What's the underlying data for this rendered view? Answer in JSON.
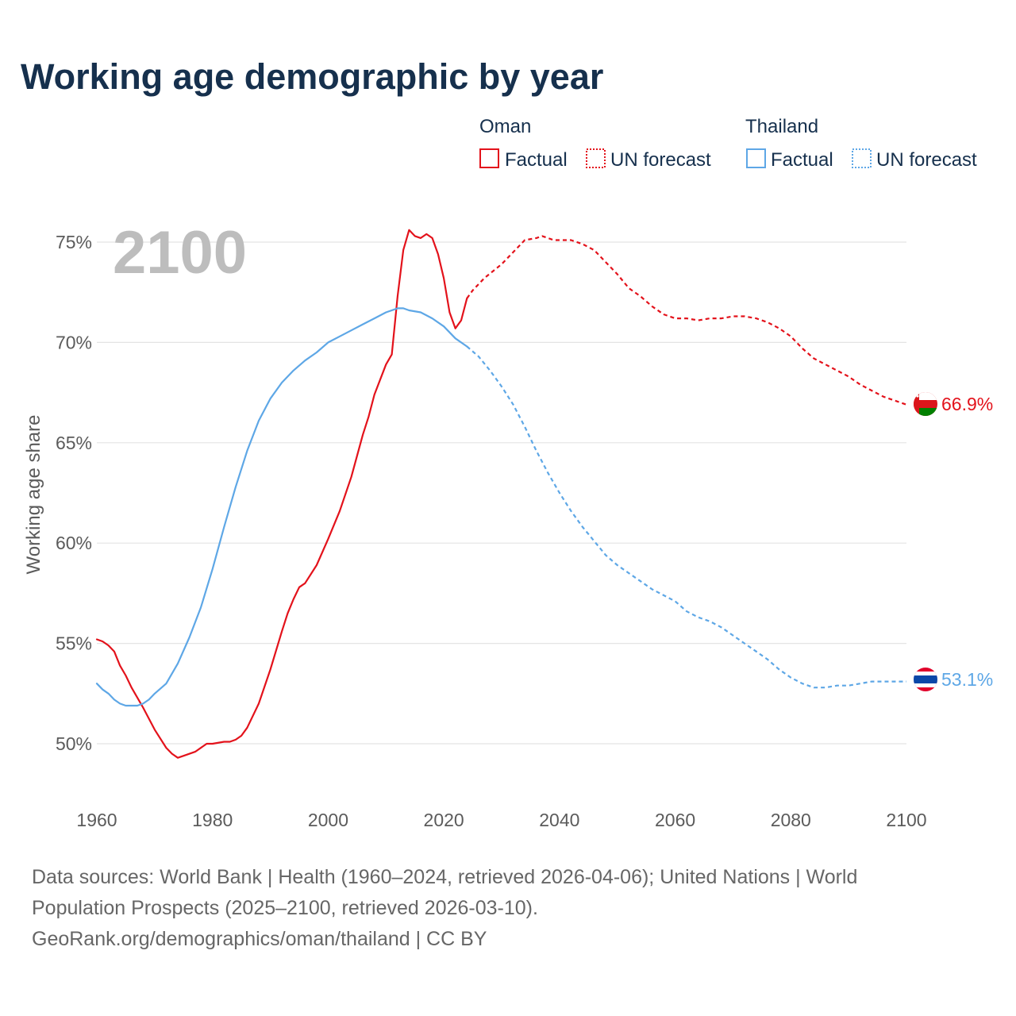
{
  "title": "Working age demographic by year",
  "year_watermark": "2100",
  "legend": {
    "groups": [
      {
        "name": "Oman",
        "color": "#e3121b",
        "factual_label": "Factual",
        "forecast_label": "UN forecast"
      },
      {
        "name": "Thailand",
        "color": "#5ea7e6",
        "factual_label": "Factual",
        "forecast_label": "UN forecast"
      }
    ]
  },
  "end_labels": {
    "oman": "66.9%",
    "thailand": "53.1%"
  },
  "icons": {
    "oman_flag": "oman-flag-icon",
    "thailand_flag": "thailand-flag-icon"
  },
  "footer": {
    "line1": "Data sources: World Bank | Health (1960–2024, retrieved 2026-04-06); United Nations | World",
    "line2": "Population Prospects (2025–2100, retrieved 2026-03-10).",
    "line3": "GeoRank.org/demographics/oman/thailand | CC BY"
  },
  "chart_data": {
    "type": "line",
    "title": "Working age demographic by year",
    "xlabel": "",
    "ylabel": "Working age share",
    "xlim": [
      1960,
      2100
    ],
    "ylim": [
      48,
      77
    ],
    "x_ticks": [
      1960,
      1980,
      2000,
      2020,
      2040,
      2060,
      2080,
      2100
    ],
    "x_tick_labels": [
      "1960",
      "1980",
      "2000",
      "2020",
      "2040",
      "2060",
      "2080",
      "2100"
    ],
    "y_ticks": [
      50,
      55,
      60,
      65,
      70,
      75
    ],
    "y_tick_labels": [
      "50%",
      "55%",
      "60%",
      "65%",
      "70%",
      "75%"
    ],
    "grid": true,
    "legend_position": "top-right",
    "forecast_start": 2024,
    "series": [
      {
        "name": "Oman",
        "color": "#e3121b",
        "x": [
          1960,
          1961,
          1962,
          1963,
          1964,
          1965,
          1966,
          1968,
          1970,
          1972,
          1973,
          1974,
          1975,
          1977,
          1979,
          1980,
          1982,
          1983,
          1984,
          1985,
          1986,
          1988,
          1990,
          1992,
          1993,
          1994,
          1995,
          1996,
          1998,
          2000,
          2002,
          2004,
          2006,
          2007,
          2008,
          2010,
          2011,
          2012,
          2013,
          2014,
          2015,
          2016,
          2017,
          2018,
          2019,
          2020,
          2021,
          2022,
          2023,
          2024,
          2025,
          2027,
          2030,
          2032,
          2034,
          2036,
          2037,
          2038,
          2039,
          2040,
          2042,
          2044,
          2046,
          2048,
          2050,
          2052,
          2054,
          2056,
          2058,
          2060,
          2062,
          2064,
          2066,
          2068,
          2070,
          2072,
          2074,
          2076,
          2078,
          2080,
          2082,
          2084,
          2086,
          2088,
          2090,
          2092,
          2094,
          2096,
          2098,
          2100
        ],
        "values": [
          55.2,
          55.1,
          54.9,
          54.6,
          53.9,
          53.4,
          52.8,
          51.8,
          50.7,
          49.8,
          49.5,
          49.3,
          49.4,
          49.6,
          50.0,
          50.0,
          50.1,
          50.1,
          50.2,
          50.4,
          50.8,
          52.0,
          53.7,
          55.6,
          56.5,
          57.2,
          57.8,
          58.0,
          58.9,
          60.2,
          61.6,
          63.3,
          65.4,
          66.3,
          67.4,
          68.9,
          69.4,
          72.3,
          74.6,
          75.6,
          75.3,
          75.2,
          75.4,
          75.2,
          74.4,
          73.2,
          71.5,
          70.7,
          71.1,
          72.2,
          72.6,
          73.2,
          73.9,
          74.5,
          75.1,
          75.2,
          75.3,
          75.2,
          75.1,
          75.1,
          75.1,
          74.9,
          74.6,
          74.0,
          73.4,
          72.7,
          72.3,
          71.8,
          71.4,
          71.2,
          71.2,
          71.1,
          71.2,
          71.2,
          71.3,
          71.3,
          71.2,
          71.0,
          70.7,
          70.3,
          69.7,
          69.2,
          68.9,
          68.6,
          68.3,
          67.9,
          67.6,
          67.3,
          67.1,
          66.9
        ]
      },
      {
        "name": "Thailand",
        "color": "#5ea7e6",
        "x": [
          1960,
          1961,
          1962,
          1963,
          1964,
          1965,
          1966,
          1967,
          1968,
          1969,
          1970,
          1972,
          1974,
          1976,
          1978,
          1980,
          1982,
          1984,
          1986,
          1988,
          1990,
          1992,
          1994,
          1996,
          1998,
          2000,
          2002,
          2004,
          2006,
          2008,
          2010,
          2012,
          2013,
          2014,
          2016,
          2018,
          2020,
          2022,
          2024,
          2026,
          2028,
          2030,
          2032,
          2034,
          2036,
          2038,
          2040,
          2042,
          2044,
          2046,
          2048,
          2050,
          2052,
          2054,
          2056,
          2058,
          2060,
          2062,
          2064,
          2066,
          2068,
          2070,
          2072,
          2074,
          2076,
          2078,
          2080,
          2082,
          2084,
          2086,
          2088,
          2090,
          2092,
          2094,
          2096,
          2098,
          2100
        ],
        "values": [
          53.0,
          52.7,
          52.5,
          52.2,
          52.0,
          51.9,
          51.9,
          51.9,
          52.0,
          52.2,
          52.5,
          53.0,
          54.0,
          55.3,
          56.8,
          58.7,
          60.8,
          62.8,
          64.6,
          66.1,
          67.2,
          68.0,
          68.6,
          69.1,
          69.5,
          70.0,
          70.3,
          70.6,
          70.9,
          71.2,
          71.5,
          71.7,
          71.7,
          71.6,
          71.5,
          71.2,
          70.8,
          70.2,
          69.8,
          69.3,
          68.6,
          67.8,
          66.9,
          65.8,
          64.6,
          63.5,
          62.5,
          61.6,
          60.8,
          60.1,
          59.4,
          58.9,
          58.5,
          58.1,
          57.7,
          57.4,
          57.1,
          56.6,
          56.3,
          56.1,
          55.8,
          55.4,
          55.0,
          54.6,
          54.2,
          53.7,
          53.3,
          53.0,
          52.8,
          52.8,
          52.9,
          52.9,
          53.0,
          53.1,
          53.1,
          53.1,
          53.1
        ]
      }
    ]
  }
}
